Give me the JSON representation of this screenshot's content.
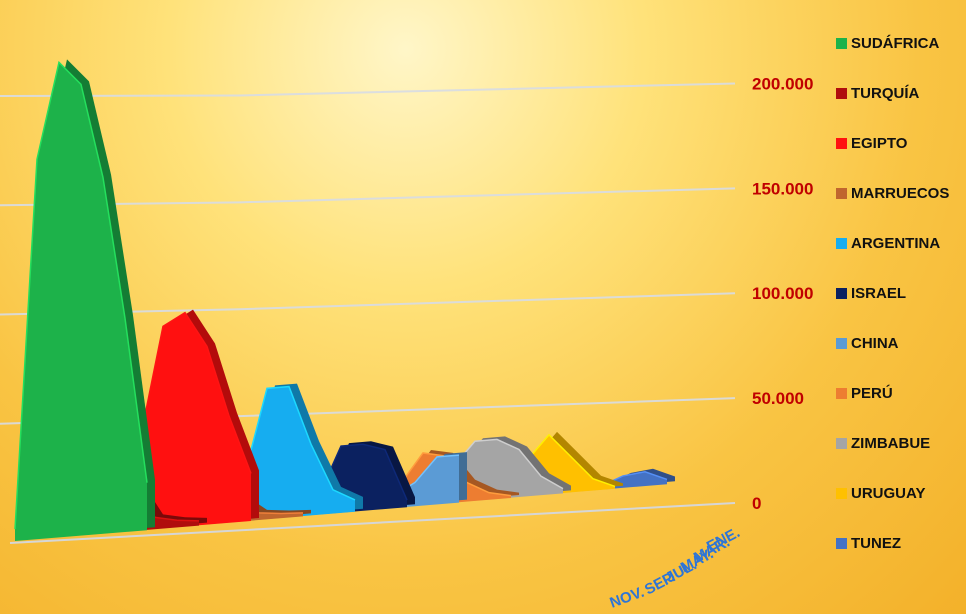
{
  "chart_data": {
    "type": "area",
    "subtype": "3d-area",
    "title": "",
    "xlabel": "",
    "ylabel": "",
    "ylim": [
      0,
      200000
    ],
    "y_ticks": [
      "0",
      "50.000",
      "100.000",
      "150.000",
      "200.000"
    ],
    "x_ticks": [
      "ENE.",
      "MAR.",
      "MAY.",
      "JUL.",
      "SEP.",
      "NOV."
    ],
    "grid": true,
    "legend_position": "right",
    "series": [
      {
        "name": "SUDÁFRICA",
        "color": "#1db24a",
        "values": [
          5000,
          160000,
          200000,
          190000,
          150000,
          90000,
          20000
        ]
      },
      {
        "name": "TURQUÍA",
        "color": "#b00d0d",
        "values": [
          45000,
          45000,
          40000,
          20000,
          5000,
          3000,
          2000
        ]
      },
      {
        "name": "EGIPTO",
        "color": "#ff1010",
        "values": [
          5000,
          40000,
          85000,
          90000,
          75000,
          45000,
          20000
        ]
      },
      {
        "name": "MARRUECOS",
        "color": "#c0662e",
        "values": [
          30000,
          30000,
          25000,
          10000,
          3000,
          2000,
          1500
        ]
      },
      {
        "name": "ARGENTINA",
        "color": "#16adf0",
        "values": [
          5000,
          20000,
          55000,
          55000,
          30000,
          10000,
          5000
        ]
      },
      {
        "name": "ISRAEL",
        "color": "#0b2160",
        "values": [
          2000,
          5000,
          8000,
          28000,
          28000,
          25000,
          3000
        ]
      },
      {
        "name": "CHINA",
        "color": "#5b9bd5",
        "values": [
          15000,
          15000,
          5000,
          5000,
          10000,
          20000,
          20000
        ]
      },
      {
        "name": "PERÚ",
        "color": "#ed7d31",
        "values": [
          2000,
          10000,
          22000,
          20000,
          8000,
          3000,
          1000
        ]
      },
      {
        "name": "ZIMBABUE",
        "color": "#a5a5a5",
        "values": [
          2000,
          15000,
          25000,
          25000,
          20000,
          8000,
          2000
        ]
      },
      {
        "name": "URUGUAY",
        "color": "#ffc000",
        "values": [
          1000,
          3000,
          15000,
          25000,
          15000,
          5000,
          1000
        ]
      },
      {
        "name": "TUNEZ",
        "color": "#4472c4",
        "values": [
          1000,
          1500,
          1500,
          1500,
          5000,
          6000,
          2000
        ]
      }
    ]
  }
}
